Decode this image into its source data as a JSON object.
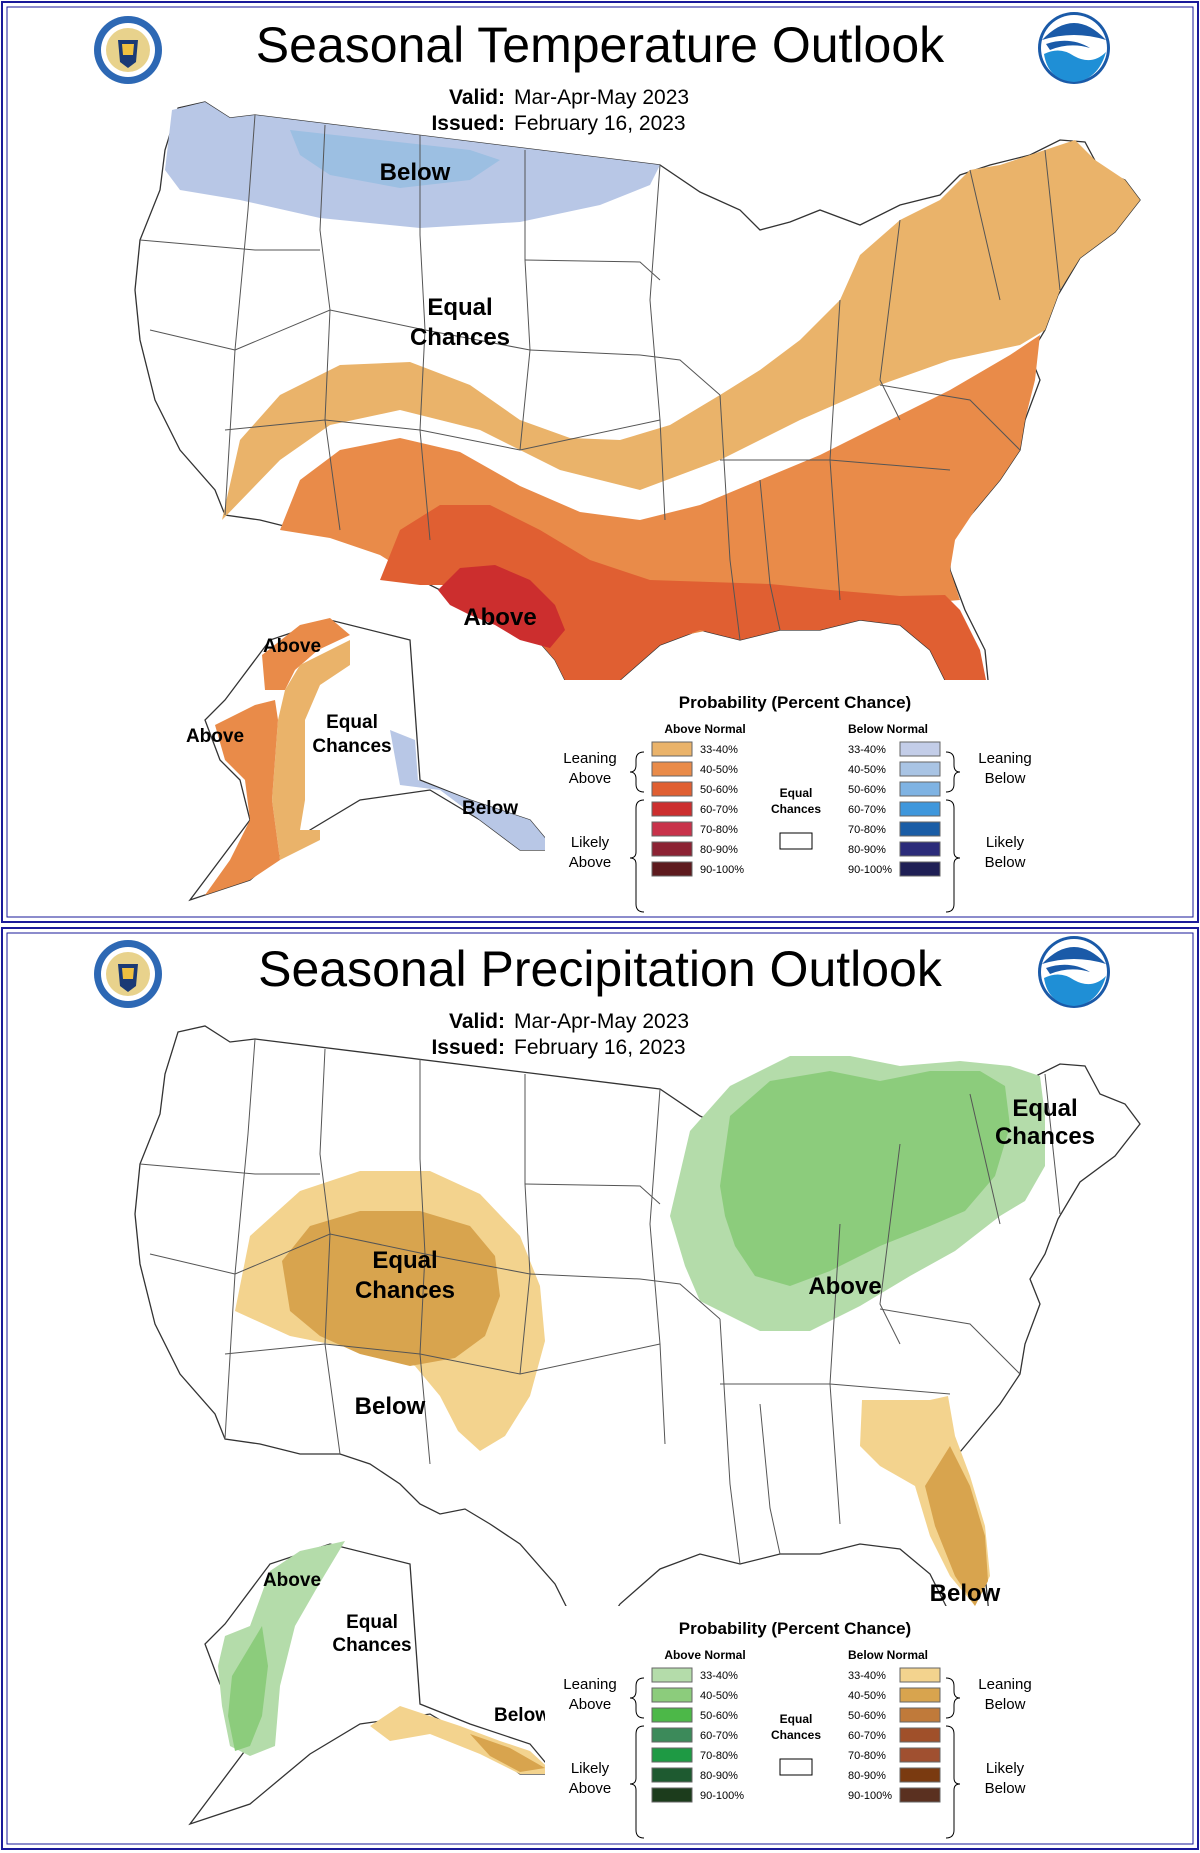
{
  "temperature": {
    "title": "Seasonal Temperature Outlook",
    "valid_label": "Valid:",
    "valid_value": "Mar-Apr-May 2023",
    "issued_label": "Issued:",
    "issued_value": "February 16, 2023",
    "labels": {
      "below": "Below",
      "eq1": "Equal",
      "eq2": "Chances",
      "above": "Above",
      "ak_above_n": "Above",
      "ak_above_w": "Above",
      "ak_eq1": "Equal",
      "ak_eq2": "Chances",
      "ak_below": "Below"
    },
    "colors": {
      "lean_above": "#eab36a",
      "above_4050": "#e98b49",
      "above_5060": "#e05f32",
      "above_6070": "#cc2e2e",
      "lean_below": "#b8c7e6",
      "below_4050": "#9cbfe2"
    }
  },
  "precipitation": {
    "title": "Seasonal Precipitation Outlook",
    "valid_label": "Valid:",
    "valid_value": "Mar-Apr-May 2023",
    "issued_label": "Issued:",
    "issued_value": "February 16, 2023",
    "labels": {
      "eq_w1": "Equal",
      "eq_w2": "Chances",
      "eq_ne1": "Equal",
      "eq_ne2": "Chances",
      "above": "Above",
      "below": "Below",
      "below_fl": "Below",
      "ak_above": "Above",
      "ak_eq1": "Equal",
      "ak_eq2": "Chances",
      "ak_below": "Below"
    },
    "colors": {
      "lean_above": "#b4dcaa",
      "above_4050": "#8ccc7c",
      "lean_below": "#f3d38e",
      "below_4050": "#d8a44e"
    }
  },
  "legend": {
    "title": "Probability (Percent Chance)",
    "above_head": "Above Normal",
    "below_head": "Below Normal",
    "leaning": "Leaning",
    "likely": "Likely",
    "above_word": "Above",
    "below_word": "Below",
    "equal": "Equal",
    "chances": "Chances",
    "ranges": [
      "33-40%",
      "40-50%",
      "50-60%",
      "60-70%",
      "70-80%",
      "80-90%",
      "90-100%"
    ],
    "temp_above_colors": [
      "#eab36a",
      "#e98b49",
      "#e05f32",
      "#cc2e2e",
      "#c8324a",
      "#8c2233",
      "#5e1a1e"
    ],
    "temp_below_colors": [
      "#c3cde8",
      "#a9c4e4",
      "#7fb3e3",
      "#3f97dc",
      "#1a5da6",
      "#2b2b7a",
      "#1f1f55"
    ],
    "precip_above_colors": [
      "#b4dcaa",
      "#8ccc7c",
      "#4cb848",
      "#3c8a5a",
      "#1e9a44",
      "#1e5a30",
      "#1c3c1c"
    ],
    "precip_below_colors": [
      "#f3d38e",
      "#d8a44e",
      "#c07a3a",
      "#a0502a",
      "#a05030",
      "#7a3a10",
      "#5a3020"
    ]
  }
}
